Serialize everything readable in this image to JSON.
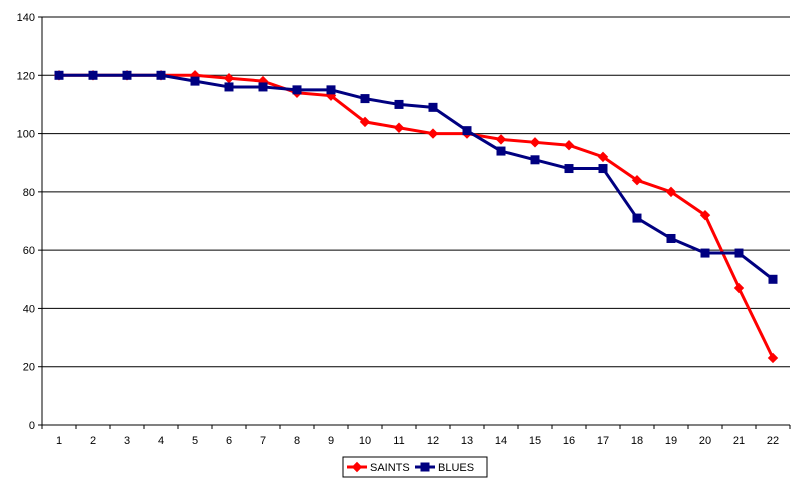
{
  "chart_data": {
    "type": "line",
    "title": "",
    "xlabel": "",
    "ylabel": "",
    "categories": [
      "1",
      "2",
      "3",
      "4",
      "5",
      "6",
      "7",
      "8",
      "9",
      "10",
      "11",
      "12",
      "13",
      "14",
      "15",
      "16",
      "17",
      "18",
      "19",
      "20",
      "21",
      "22"
    ],
    "ylim": [
      0,
      140
    ],
    "yticks": [
      0,
      20,
      40,
      60,
      80,
      100,
      120,
      140
    ],
    "grid": true,
    "legend_position": "bottom",
    "series": [
      {
        "name": "SAINTS",
        "color": "#ff0000",
        "marker": "diamond",
        "values": [
          120,
          120,
          120,
          120,
          120,
          119,
          118,
          114,
          113,
          104,
          102,
          100,
          100,
          98,
          97,
          96,
          92,
          84,
          80,
          72,
          47,
          23
        ]
      },
      {
        "name": "BLUES",
        "color": "#000080",
        "marker": "square",
        "values": [
          120,
          120,
          120,
          120,
          118,
          116,
          116,
          115,
          115,
          112,
          110,
          109,
          101,
          94,
          91,
          88,
          88,
          71,
          64,
          59,
          59,
          50
        ]
      }
    ]
  }
}
